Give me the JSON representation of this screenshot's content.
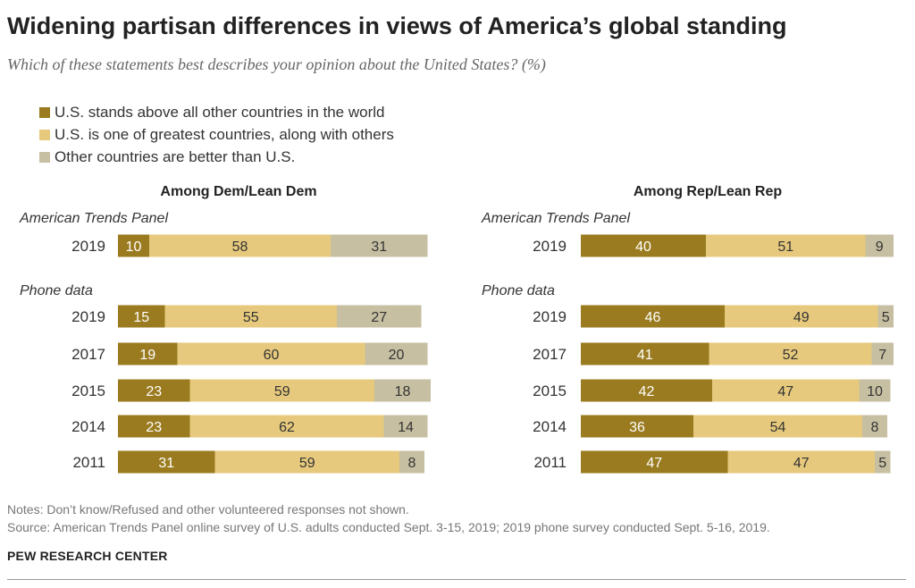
{
  "title": "Widening partisan differences in views of America’s global standing",
  "subtitle": "Which of these statements best describes your opinion about the United States? (%)",
  "legend": [
    {
      "label": "U.S. stands above all other countries in the world",
      "color": "#9a7b1f"
    },
    {
      "label": "U.S. is one of greatest countries, along with others",
      "color": "#e6c97c"
    },
    {
      "label": "Other countries are better than U.S.",
      "color": "#c7bfa2"
    }
  ],
  "notes": "Notes: Don’t know/Refused and other volunteered responses not shown.",
  "source": "Source: American Trends Panel online survey of U.S. adults conducted Sept. 3-15, 2019; 2019 phone survey conducted Sept. 5-16, 2019.",
  "brand": "PEW RESEARCH CENTER",
  "chart_data": [
    {
      "type": "bar",
      "orientation": "horizontal-stacked",
      "title": "Among Dem/Lean Dem",
      "groups": [
        {
          "label": "American Trends Panel",
          "rows": [
            {
              "year": "2019",
              "values": [
                10,
                58,
                31
              ]
            }
          ]
        },
        {
          "label": "Phone data",
          "rows": [
            {
              "year": "2019",
              "values": [
                15,
                55,
                27
              ]
            },
            {
              "year": "2017",
              "values": [
                19,
                60,
                20
              ]
            },
            {
              "year": "2015",
              "values": [
                23,
                59,
                18
              ]
            },
            {
              "year": "2014",
              "values": [
                23,
                62,
                14
              ]
            },
            {
              "year": "2011",
              "values": [
                31,
                59,
                8
              ]
            }
          ]
        }
      ],
      "series": [
        "U.S. stands above all other countries in the world",
        "U.S. is one of greatest countries, along with others",
        "Other countries are better than U.S."
      ]
    },
    {
      "type": "bar",
      "orientation": "horizontal-stacked",
      "title": "Among Rep/Lean Rep",
      "groups": [
        {
          "label": "American Trends Panel",
          "rows": [
            {
              "year": "2019",
              "values": [
                40,
                51,
                9
              ]
            }
          ]
        },
        {
          "label": "Phone data",
          "rows": [
            {
              "year": "2019",
              "values": [
                46,
                49,
                5
              ]
            },
            {
              "year": "2017",
              "values": [
                41,
                52,
                7
              ]
            },
            {
              "year": "2015",
              "values": [
                42,
                47,
                10
              ]
            },
            {
              "year": "2014",
              "values": [
                36,
                54,
                8
              ]
            },
            {
              "year": "2011",
              "values": [
                47,
                47,
                5
              ]
            }
          ]
        }
      ],
      "series": [
        "U.S. stands above all other countries in the world",
        "U.S. is one of greatest countries, along with others",
        "Other countries are better than U.S."
      ]
    }
  ]
}
